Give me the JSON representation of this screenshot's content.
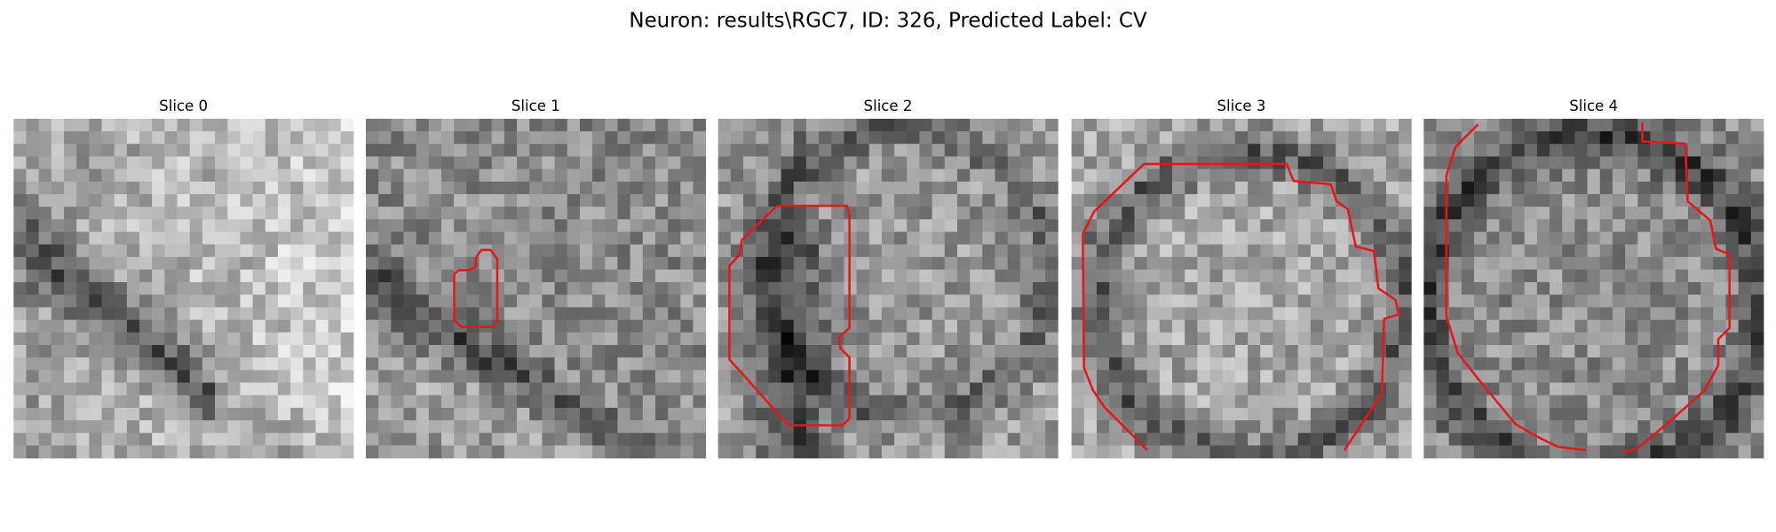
{
  "title": "Neuron: results\\RGC7, ID: 326, Predicted Label: CV",
  "panels": [
    {
      "title": "Slice 0"
    },
    {
      "title": "Slice 1"
    },
    {
      "title": "Slice 2"
    },
    {
      "title": "Slice 3"
    },
    {
      "title": "Slice 4"
    }
  ]
}
